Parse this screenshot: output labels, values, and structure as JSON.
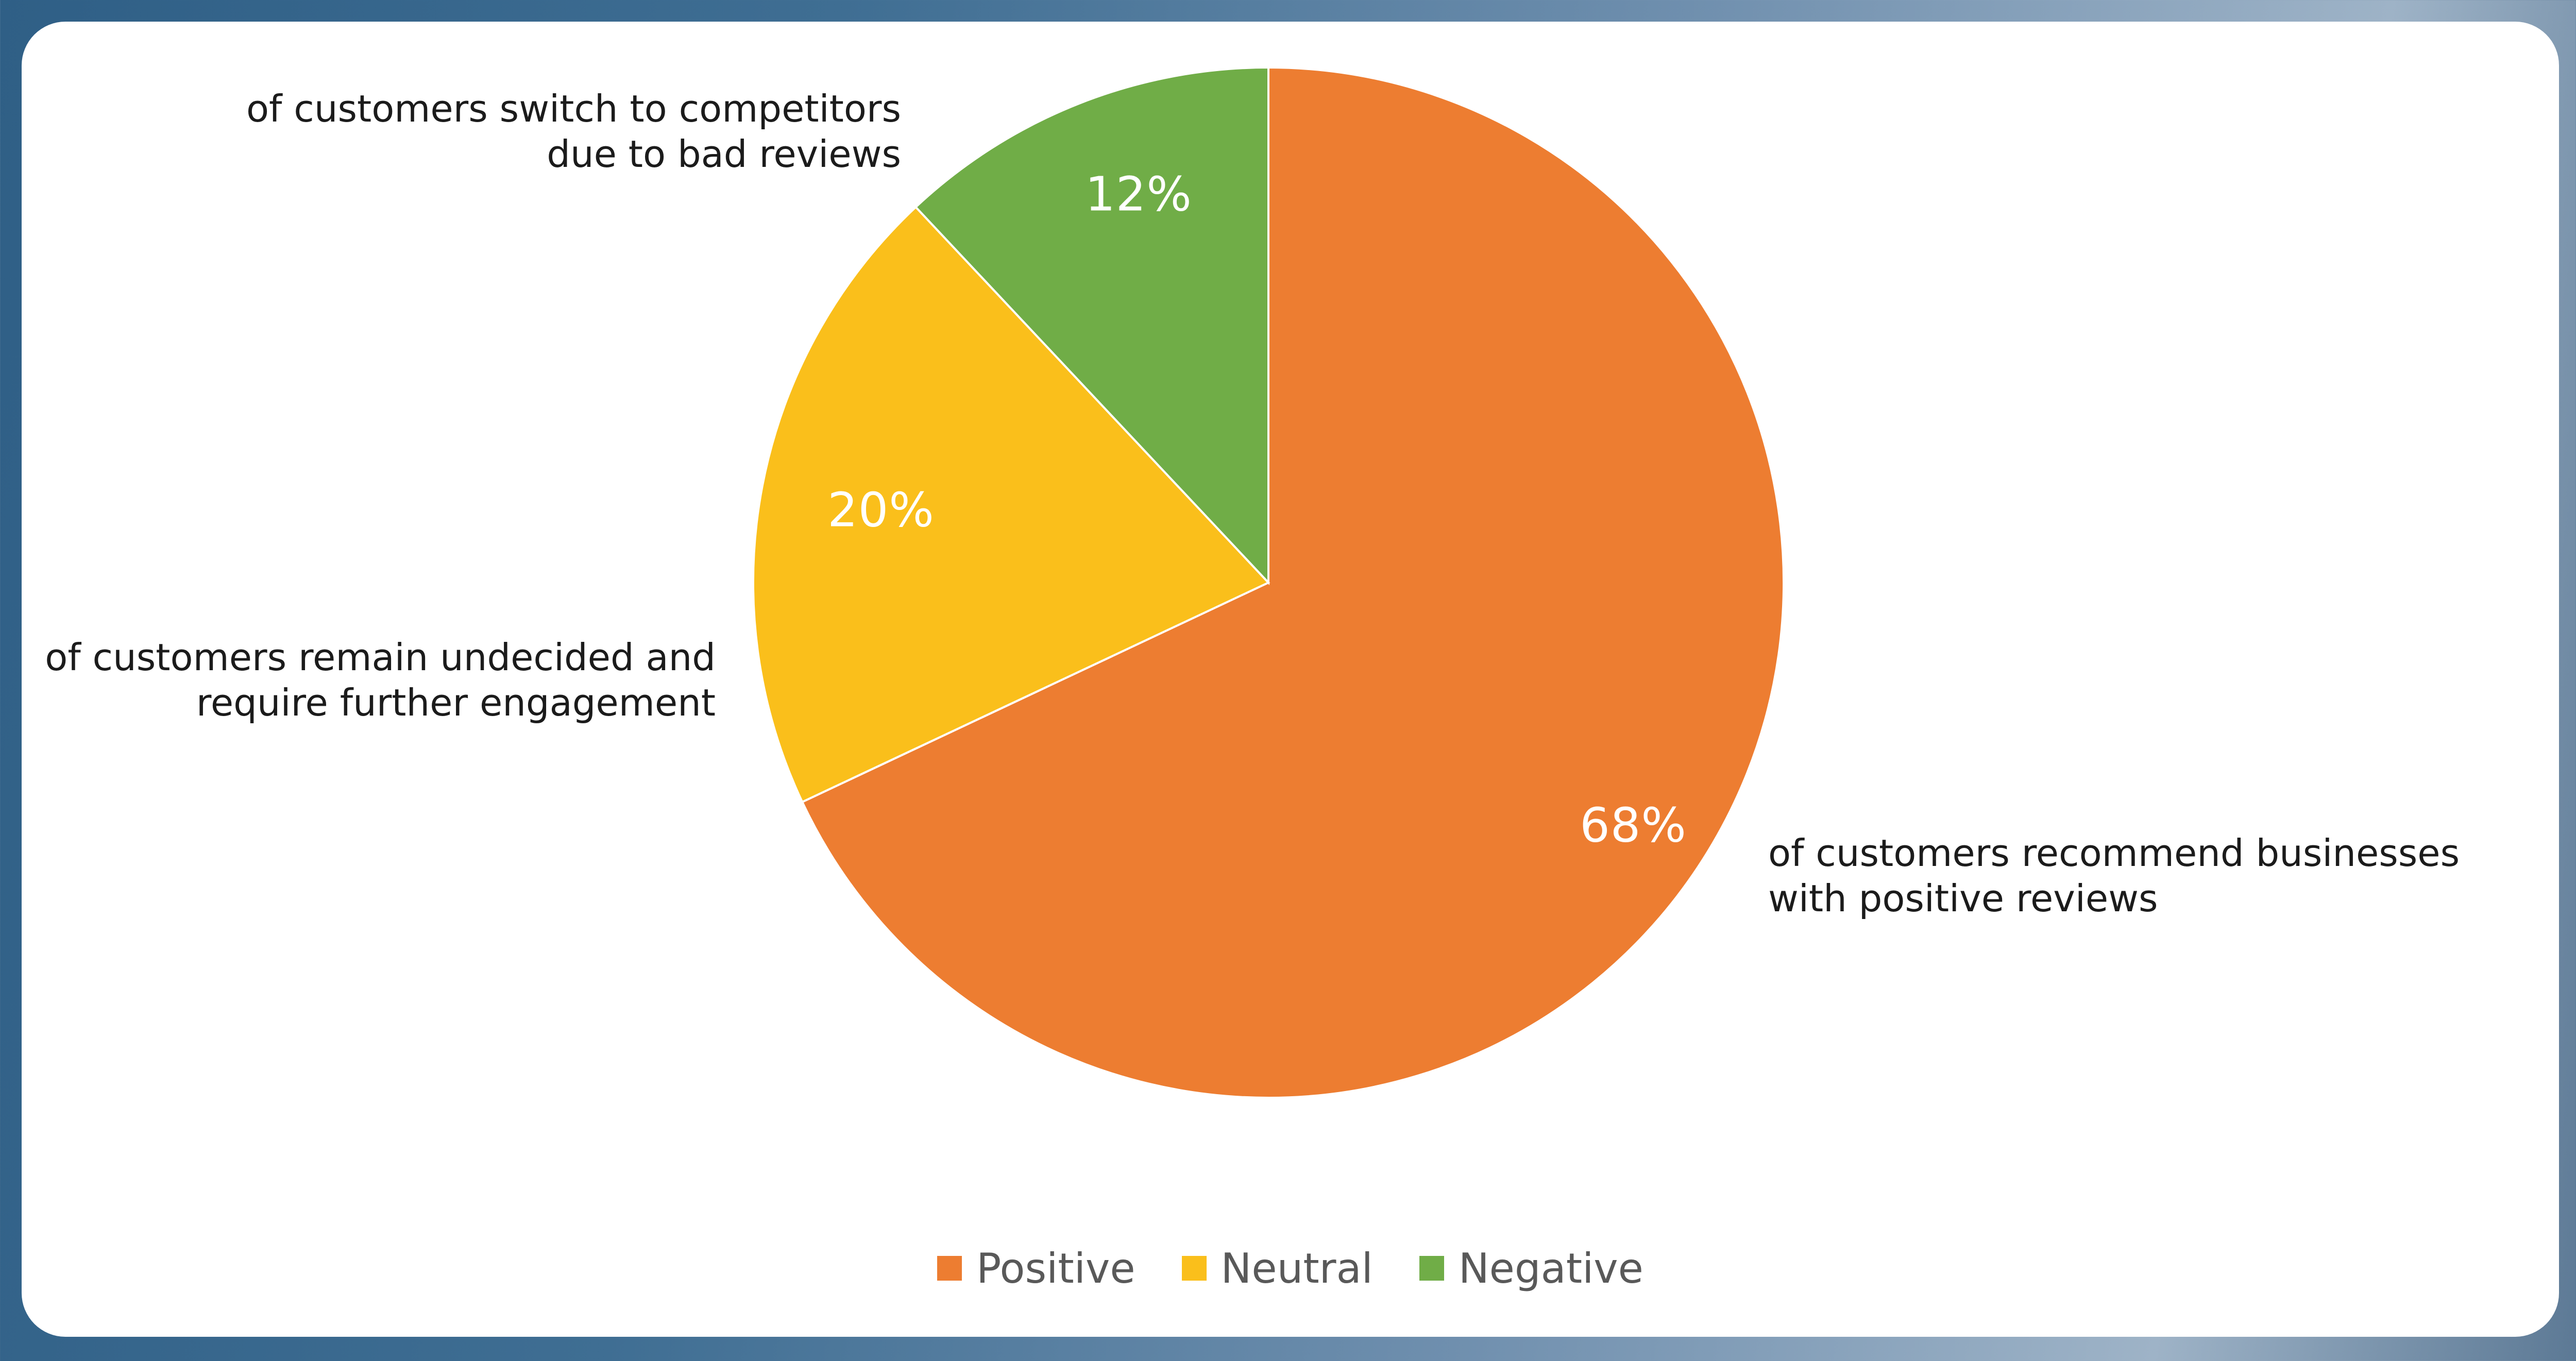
{
  "chart_data": {
    "type": "pie",
    "series": [
      {
        "name": "Positive",
        "value": 68,
        "label": "68%",
        "color": "#ED7D31",
        "annotation": [
          "of customers recommend businesses",
          "with positive reviews"
        ]
      },
      {
        "name": "Neutral",
        "value": 20,
        "label": "20%",
        "color": "#FABF1B",
        "annotation": [
          "of customers remain undecided and",
          "require further engagement"
        ]
      },
      {
        "name": "Negative",
        "value": 12,
        "label": "12%",
        "color": "#70AD47",
        "annotation": [
          "of customers switch to competitors",
          "due to bad reviews"
        ]
      }
    ],
    "legend": {
      "position": "bottom"
    }
  }
}
